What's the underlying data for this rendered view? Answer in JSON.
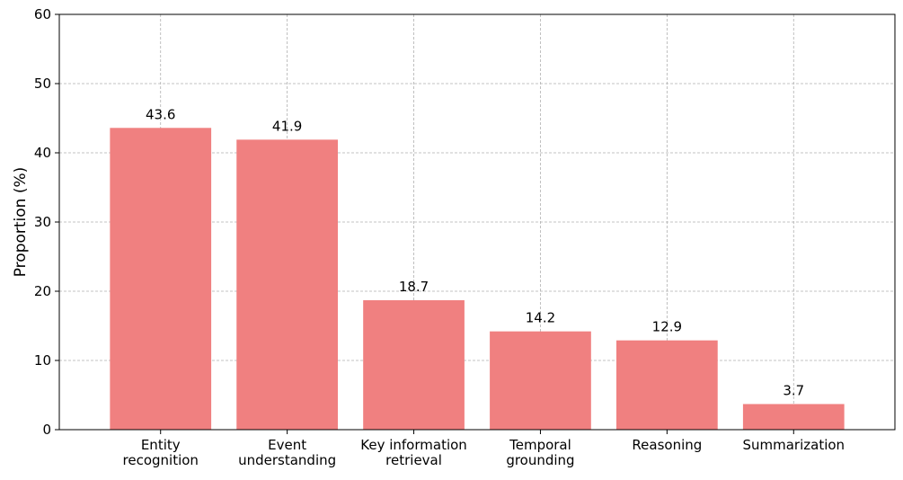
{
  "chart_data": {
    "type": "bar",
    "categories": [
      [
        "Entity",
        "recognition"
      ],
      [
        "Event",
        "understanding"
      ],
      [
        "Key information",
        "retrieval"
      ],
      [
        "Temporal",
        "grounding"
      ],
      [
        "Reasoning"
      ],
      [
        "Summarization"
      ]
    ],
    "values": [
      43.6,
      41.9,
      18.7,
      14.2,
      12.9,
      3.7
    ],
    "data_labels": [
      "43.6",
      "41.9",
      "18.7",
      "14.2",
      "12.9",
      "3.7"
    ],
    "title": "",
    "xlabel": "",
    "ylabel": "Proportion (%)",
    "ylim": [
      0,
      60
    ],
    "yticks": [
      0,
      10,
      20,
      30,
      40,
      50,
      60
    ],
    "ytick_labels": [
      "0",
      "10",
      "20",
      "30",
      "40",
      "50",
      "60"
    ],
    "grid": true,
    "bar_color": "#f08080",
    "grid_color": "#b0b0b0"
  }
}
